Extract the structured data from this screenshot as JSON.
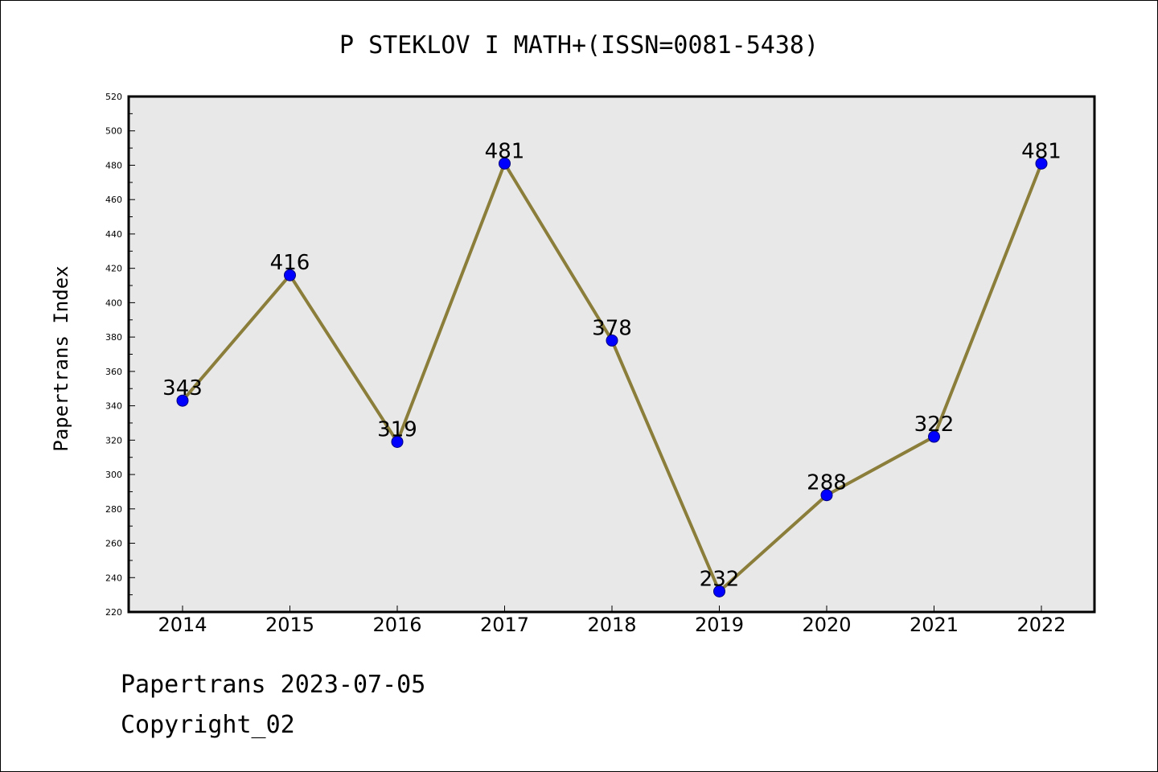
{
  "chart_data": {
    "type": "line",
    "title": "P STEKLOV I MATH+(ISSN=0081-5438)",
    "xlabel": "",
    "ylabel": "Papertrans Index",
    "categories": [
      "2014",
      "2015",
      "2016",
      "2017",
      "2018",
      "2019",
      "2020",
      "2021",
      "2022"
    ],
    "values": [
      343,
      416,
      319,
      481,
      378,
      232,
      288,
      322,
      481
    ],
    "data_labels": [
      "343",
      "416",
      "319",
      "481",
      "378",
      "232",
      "288",
      "322",
      "481"
    ],
    "ylim": [
      220,
      520
    ],
    "yticks": [
      220,
      240,
      260,
      280,
      300,
      320,
      340,
      360,
      380,
      400,
      420,
      440,
      460,
      480,
      500,
      520
    ],
    "ytick_labels": [
      "220",
      "240",
      "260",
      "280",
      "300",
      "320",
      "340",
      "360",
      "380",
      "400",
      "420",
      "440",
      "460",
      "480",
      "500",
      "520"
    ],
    "grid": false,
    "legend": "none",
    "colors": {
      "line": "#8b7d3a",
      "marker": "#0000ff",
      "marker_edge": "#000080",
      "plot_background": "#e8e8e8",
      "axes": "#000000"
    }
  },
  "footer": {
    "source": "Papertrans 2023-07-05",
    "copyright": "Copyright_02"
  }
}
